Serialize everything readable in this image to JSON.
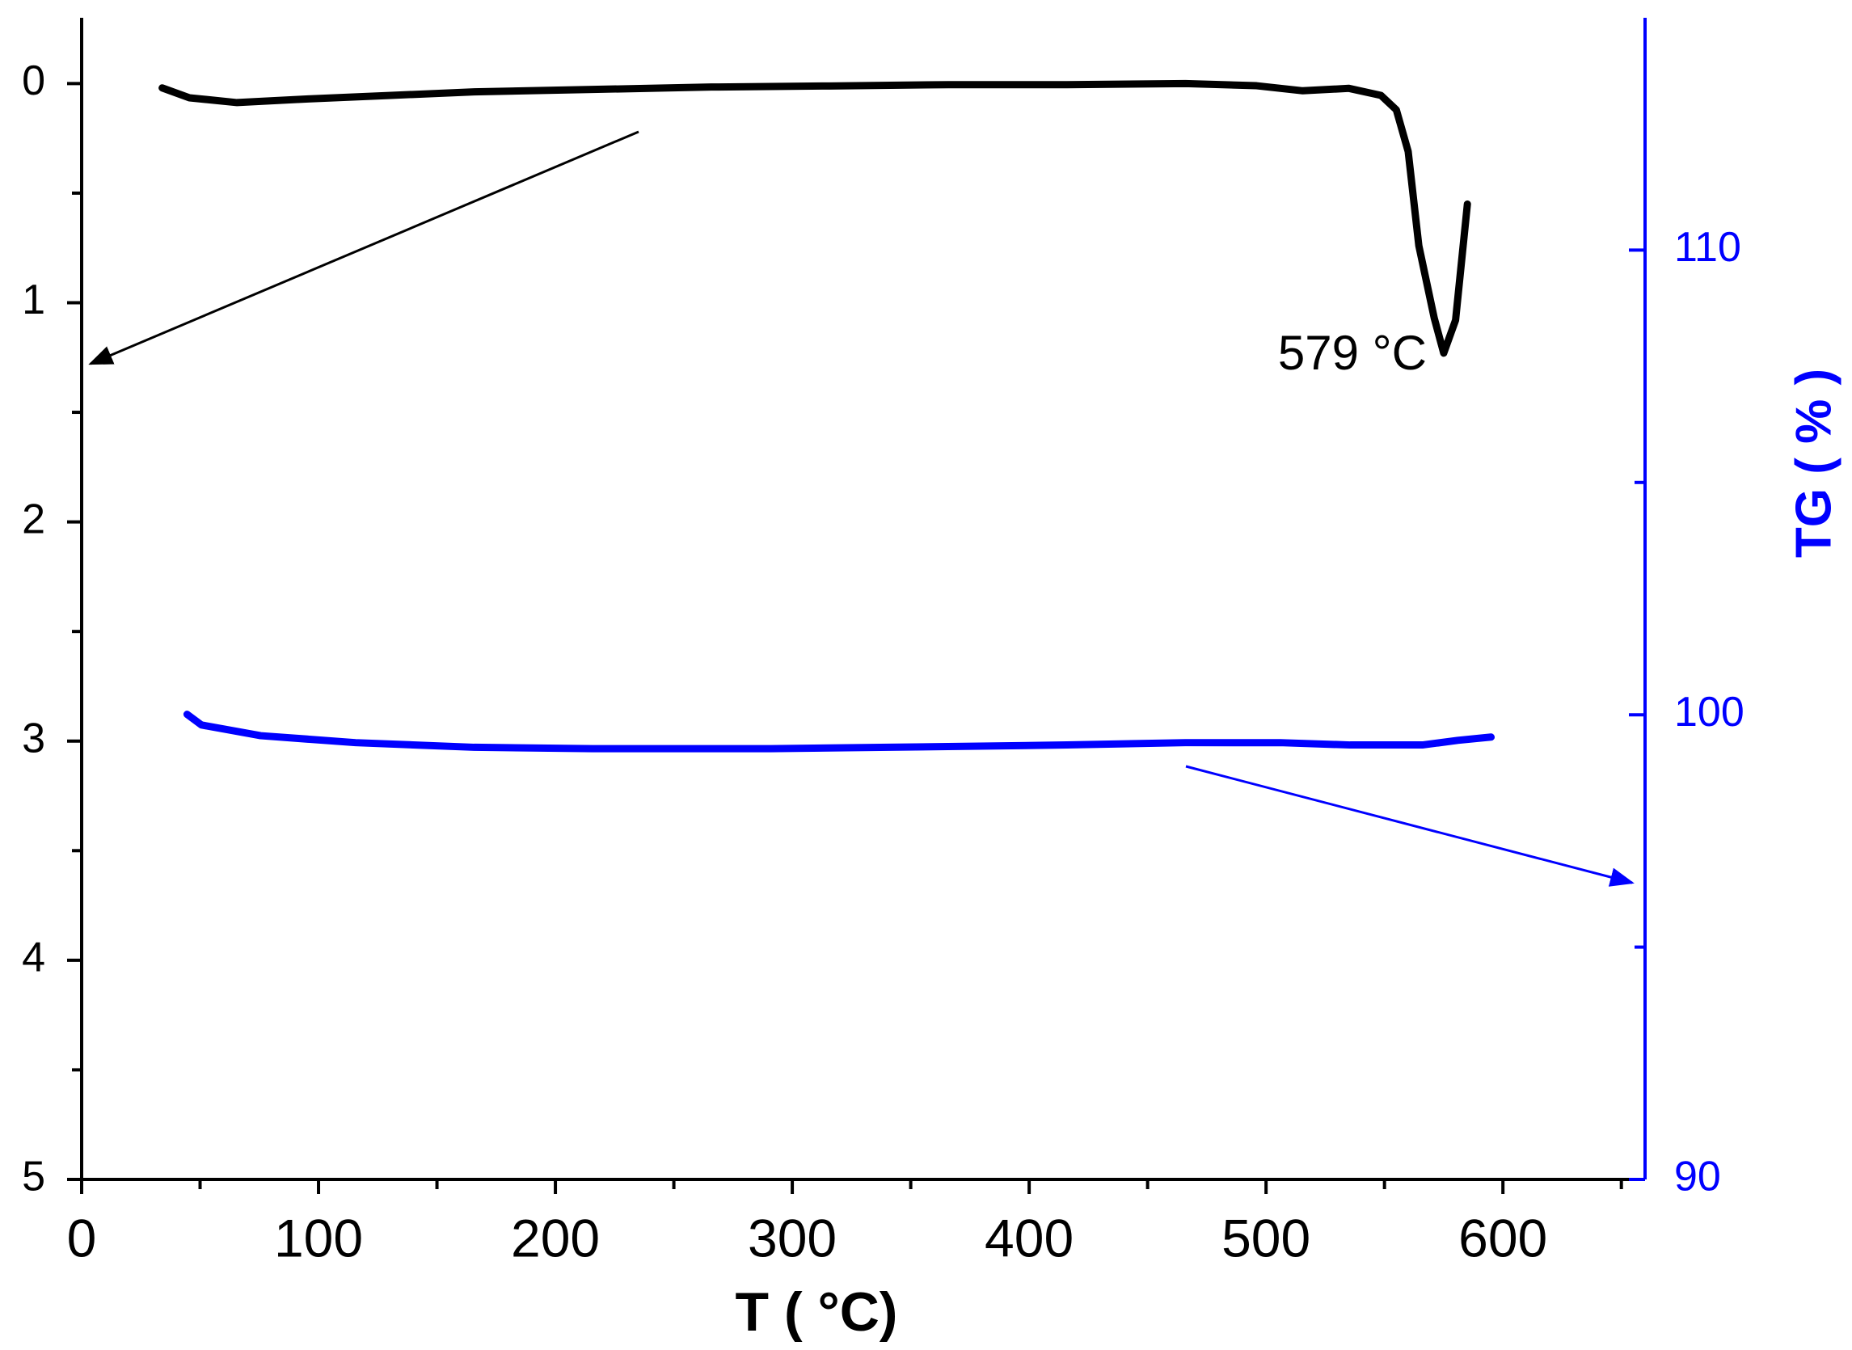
{
  "chart_data": {
    "type": "line",
    "xlabel": "T ( °C)",
    "y2label": "TG ( % )",
    "annotations": [
      {
        "text": "579 °C"
      }
    ],
    "xlim": [
      0,
      660
    ],
    "xticks": [
      0,
      100,
      200,
      300,
      400,
      500,
      600
    ],
    "xminor": [
      50,
      150,
      250,
      350,
      450,
      550,
      650
    ],
    "ylim": [
      5,
      -0.3
    ],
    "yticks": [
      0,
      1,
      2,
      3,
      4,
      5
    ],
    "yminor": [
      0.5,
      1.5,
      2.5,
      3.5,
      4.5
    ],
    "y2lim": [
      90,
      115
    ],
    "y2ticks": [
      90,
      100,
      110
    ],
    "y2minor": [
      95,
      105
    ],
    "y2color": "#0000ff",
    "series": [
      {
        "color": "#000000",
        "axis": "y",
        "x": [
          34,
          45.5,
          65.6,
          95.6,
          130.6,
          165.7,
          215.7,
          265.8,
          315.8,
          365.9,
          416,
          466,
          496,
          515.5,
          535,
          548.5,
          555,
          560,
          564.5,
          571,
          575,
          580,
          585
        ],
        "values": [
          0.02,
          0.065,
          0.087,
          0.07,
          0.054,
          0.038,
          0.027,
          0.016,
          0.011,
          0.005,
          0.005,
          0,
          0.01,
          0.033,
          0.022,
          0.054,
          0.12,
          0.31,
          0.74,
          1.07,
          1.23,
          1.08,
          0.55
        ]
      },
      {
        "color": "#0000ff",
        "axis": "y2",
        "x": [
          44.5,
          50.6,
          75.6,
          115.6,
          165.7,
          215.7,
          290.8,
          340.8,
          415.9,
          466,
          506,
          535.5,
          566,
          581,
          595
        ],
        "values": [
          100.01,
          99.78,
          99.55,
          99.4,
          99.3,
          99.27,
          99.27,
          99.3,
          99.35,
          99.4,
          99.4,
          99.35,
          99.35,
          99.45,
          99.52
        ]
      }
    ]
  }
}
